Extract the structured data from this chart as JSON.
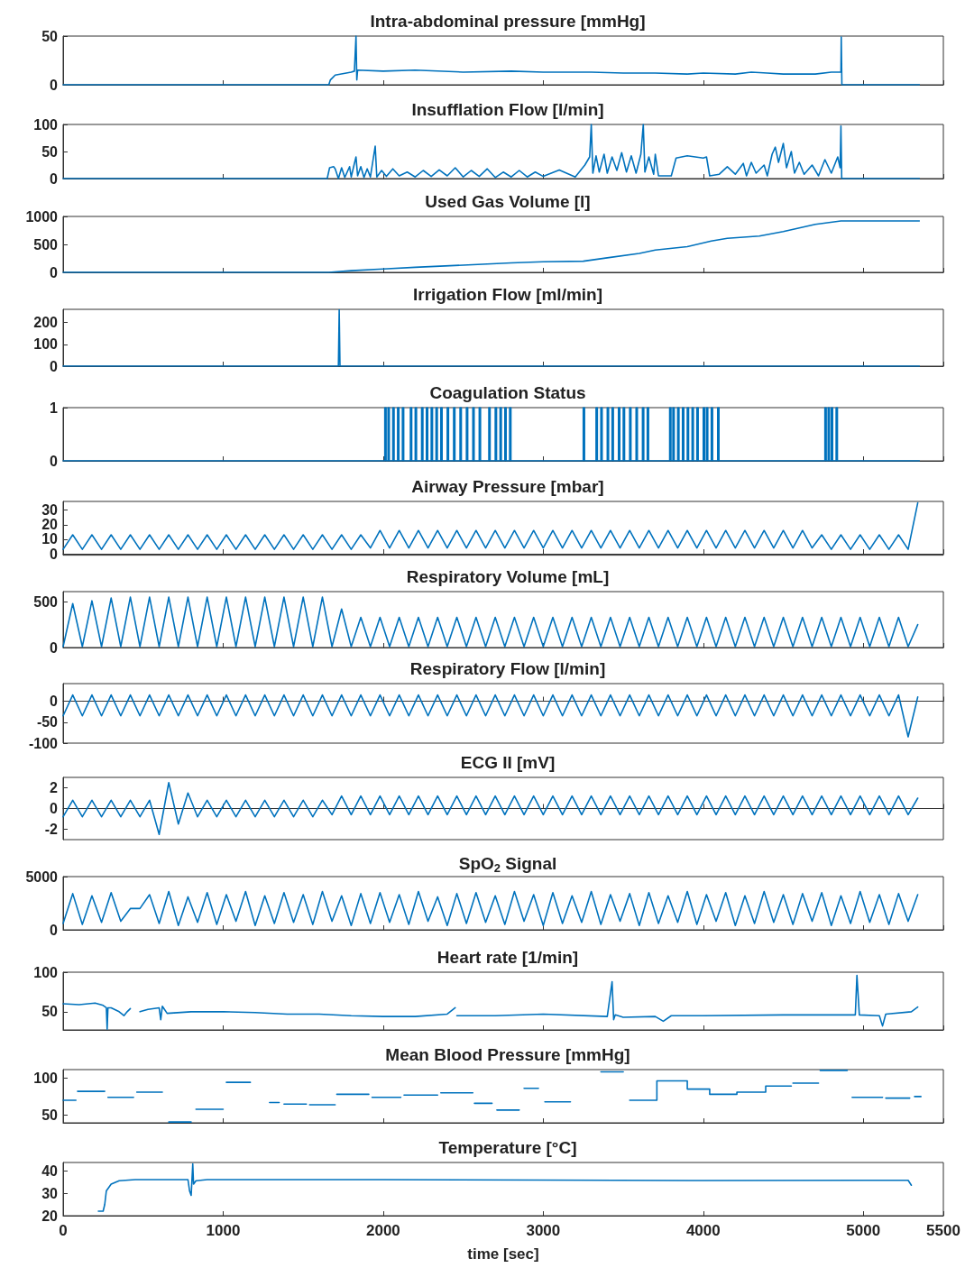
{
  "chart_data": [
    {
      "type": "line",
      "title": "Intra-abdominal pressure [mmHg]",
      "xlim": [
        0,
        5500
      ],
      "xticks": [
        0,
        1000,
        2000,
        3000,
        4000,
        5000,
        5500
      ],
      "ylim": [
        0,
        50
      ],
      "yticks": [
        0,
        50
      ],
      "tick_labels": "y",
      "series": [
        {
          "color": "#0072bd",
          "x": [
            0,
            1660,
            1670,
            1700,
            1800,
            1820,
            1830,
            1835,
            1840,
            2000,
            2200,
            2500,
            2800,
            3000,
            3300,
            3500,
            3700,
            3900,
            4000,
            4200,
            4300,
            4400,
            4500,
            4700,
            4800,
            4855,
            4860,
            4862,
            4866,
            5350
          ],
          "values": [
            0,
            0,
            5,
            10,
            13,
            14,
            50,
            5,
            15,
            14,
            15,
            13,
            14,
            13,
            13,
            12,
            12,
            11,
            12,
            11,
            13,
            12,
            11,
            11,
            13,
            13,
            13,
            49,
            0,
            0
          ]
        }
      ]
    },
    {
      "type": "line",
      "title": "Insufflation Flow [l/min]",
      "xlim": [
        0,
        5500
      ],
      "xticks": [
        0,
        1000,
        2000,
        3000,
        4000,
        5000,
        5500
      ],
      "ylim": [
        0,
        100
      ],
      "yticks": [
        0,
        50,
        100
      ],
      "tick_labels": "y",
      "series": [
        {
          "color": "#0072bd",
          "x": [
            0,
            1650,
            1665,
            1690,
            1700,
            1720,
            1740,
            1760,
            1790,
            1800,
            1820,
            1830,
            1840,
            1860,
            1880,
            1900,
            1920,
            1950,
            1960,
            1990,
            2020,
            2060,
            2100,
            2150,
            2200,
            2250,
            2300,
            2350,
            2400,
            2450,
            2500,
            2550,
            2600,
            2650,
            2700,
            2750,
            2800,
            2850,
            2900,
            2950,
            3000,
            3100,
            3200,
            3260,
            3290,
            3300,
            3310,
            3330,
            3350,
            3380,
            3400,
            3430,
            3460,
            3490,
            3520,
            3550,
            3580,
            3610,
            3625,
            3635,
            3660,
            3690,
            3700,
            3720,
            3750,
            3800,
            3830,
            3900,
            3950,
            4000,
            4020,
            4040,
            4100,
            4150,
            4200,
            4250,
            4270,
            4300,
            4330,
            4380,
            4400,
            4430,
            4450,
            4470,
            4500,
            4520,
            4550,
            4570,
            4600,
            4630,
            4680,
            4720,
            4760,
            4800,
            4840,
            4855,
            4860,
            4865,
            5350
          ],
          "values": [
            0,
            0,
            20,
            22,
            18,
            0,
            20,
            2,
            22,
            3,
            28,
            40,
            5,
            22,
            2,
            18,
            3,
            60,
            3,
            15,
            4,
            18,
            5,
            12,
            3,
            15,
            4,
            16,
            5,
            20,
            3,
            15,
            4,
            18,
            2,
            12,
            3,
            15,
            3,
            12,
            4,
            16,
            3,
            25,
            40,
            100,
            10,
            42,
            12,
            45,
            10,
            40,
            15,
            48,
            12,
            42,
            10,
            45,
            100,
            12,
            40,
            8,
            45,
            5,
            5,
            5,
            38,
            42,
            40,
            38,
            40,
            5,
            8,
            22,
            8,
            28,
            5,
            30,
            10,
            25,
            5,
            45,
            58,
            30,
            65,
            20,
            50,
            10,
            30,
            8,
            25,
            5,
            35,
            10,
            40,
            20,
            97,
            0,
            0
          ]
        }
      ]
    },
    {
      "type": "line",
      "title": "Used Gas Volume [l]",
      "xlim": [
        0,
        5500
      ],
      "xticks": [
        0,
        1000,
        2000,
        3000,
        4000,
        5000,
        5500
      ],
      "ylim": [
        0,
        1000
      ],
      "yticks": [
        0,
        500,
        1000
      ],
      "tick_labels": "y",
      "series": [
        {
          "color": "#0072bd",
          "x": [
            0,
            1660,
            1800,
            2000,
            2200,
            2500,
            2800,
            3000,
            3250,
            3400,
            3600,
            3700,
            3900,
            4050,
            4150,
            4350,
            4500,
            4700,
            4860,
            5350
          ],
          "values": [
            0,
            0,
            30,
            60,
            90,
            130,
            170,
            190,
            200,
            260,
            340,
            400,
            460,
            560,
            610,
            650,
            730,
            860,
            920,
            920
          ]
        }
      ]
    },
    {
      "type": "line",
      "title": "Irrigation Flow [ml/min]",
      "xlim": [
        0,
        5500
      ],
      "xticks": [
        0,
        1000,
        2000,
        3000,
        4000,
        5000,
        5500
      ],
      "ylim": [
        0,
        260
      ],
      "yticks": [
        0,
        100,
        200
      ],
      "tick_labels": "y",
      "series": [
        {
          "color": "#0072bd",
          "x": [
            0,
            1720,
            1725,
            1730,
            5350
          ],
          "values": [
            0,
            0,
            258,
            0,
            0
          ]
        }
      ]
    },
    {
      "type": "step",
      "title": "Coagulation Status",
      "xlim": [
        0,
        5500
      ],
      "xticks": [
        0,
        1000,
        2000,
        3000,
        4000,
        5000,
        5500
      ],
      "ylim": [
        0,
        1
      ],
      "yticks": [
        0,
        1
      ],
      "tick_labels": "y",
      "series": [
        {
          "color": "#0072bd",
          "x": [
            0,
            2010,
            2018,
            2030,
            2038,
            2060,
            2068,
            2090,
            2098,
            2120,
            2128,
            2170,
            2178,
            2200,
            2208,
            2240,
            2248,
            2270,
            2278,
            2300,
            2308,
            2330,
            2338,
            2360,
            2368,
            2400,
            2408,
            2440,
            2448,
            2480,
            2488,
            2520,
            2528,
            2560,
            2568,
            2600,
            2608,
            2660,
            2668,
            2700,
            2708,
            2730,
            2738,
            2760,
            2768,
            2790,
            2798,
            3250,
            3258,
            3330,
            3338,
            3360,
            3368,
            3400,
            3408,
            3430,
            3438,
            3470,
            3478,
            3500,
            3508,
            3540,
            3548,
            3580,
            3588,
            3620,
            3628,
            3650,
            3658,
            3790,
            3798,
            3810,
            3818,
            3840,
            3848,
            3870,
            3878,
            3900,
            3908,
            3930,
            3938,
            3960,
            3968,
            4000,
            4008,
            4020,
            4028,
            4050,
            4058,
            4090,
            4098,
            4760,
            4768,
            4780,
            4788,
            4800,
            4808,
            4830,
            4838,
            5350
          ],
          "values": [
            0,
            1,
            0,
            1,
            0,
            1,
            0,
            1,
            0,
            1,
            0,
            1,
            0,
            1,
            0,
            1,
            0,
            1,
            0,
            1,
            0,
            1,
            0,
            1,
            0,
            1,
            0,
            1,
            0,
            1,
            0,
            1,
            0,
            1,
            0,
            1,
            0,
            1,
            0,
            1,
            0,
            1,
            0,
            1,
            0,
            1,
            0,
            1,
            0,
            1,
            0,
            1,
            0,
            1,
            0,
            1,
            0,
            1,
            0,
            1,
            0,
            1,
            0,
            1,
            0,
            1,
            0,
            1,
            0,
            1,
            0,
            1,
            0,
            1,
            0,
            1,
            0,
            1,
            0,
            1,
            0,
            1,
            0,
            1,
            0,
            1,
            0,
            1,
            0,
            1,
            0,
            1,
            0,
            1,
            0,
            1,
            0,
            1,
            0,
            0
          ]
        }
      ]
    },
    {
      "type": "line",
      "title": "Airway Pressure [mbar]",
      "xlim": [
        0,
        5500
      ],
      "xticks": [
        0,
        1000,
        2000,
        3000,
        4000,
        5000,
        5500
      ],
      "ylim": [
        -1,
        36
      ],
      "yticks": [
        0,
        10,
        20,
        30
      ],
      "tick_labels": "y",
      "x": [
        0,
        60,
        120,
        180,
        240,
        300,
        360,
        420,
        480,
        540,
        600,
        660,
        720,
        780,
        840,
        900,
        960,
        1020,
        1080,
        1140,
        1200,
        1260,
        1320,
        1380,
        1440,
        1500,
        1560,
        1620,
        1680,
        1740,
        1800,
        1860,
        1920,
        1980,
        2040,
        2100,
        2160,
        2220,
        2280,
        2340,
        2400,
        2460,
        2520,
        2580,
        2640,
        2700,
        2760,
        2820,
        2880,
        2940,
        3000,
        3060,
        3120,
        3180,
        3240,
        3300,
        3360,
        3420,
        3480,
        3540,
        3600,
        3660,
        3720,
        3780,
        3840,
        3900,
        3960,
        4020,
        4080,
        4140,
        4200,
        4260,
        4320,
        4380,
        4440,
        4500,
        4560,
        4620,
        4680,
        4740,
        4800,
        4860,
        4920,
        4980,
        5040,
        5100,
        5160,
        5220,
        5280,
        5340
      ],
      "series": [
        {
          "color": "#0072bd",
          "values": [
            3,
            13,
            3,
            13,
            3,
            13,
            3,
            13,
            3,
            13,
            3,
            13,
            3,
            13,
            3,
            13,
            3,
            13,
            3,
            13,
            3,
            13,
            3,
            13,
            3,
            13,
            3,
            13,
            3,
            13,
            3,
            13,
            4,
            16,
            4,
            16,
            4,
            16,
            4,
            16,
            4,
            16,
            4,
            16,
            4,
            16,
            4,
            16,
            4,
            16,
            4,
            16,
            4,
            16,
            4,
            16,
            4,
            16,
            4,
            16,
            4,
            16,
            4,
            16,
            4,
            16,
            4,
            16,
            4,
            16,
            4,
            16,
            4,
            16,
            4,
            16,
            4,
            16,
            4,
            13,
            3,
            13,
            3,
            13,
            3,
            13,
            3,
            13,
            3,
            35
          ]
        }
      ]
    },
    {
      "type": "line",
      "title": "Respiratory Volume [mL]",
      "xlim": [
        0,
        5500
      ],
      "xticks": [
        0,
        1000,
        2000,
        3000,
        4000,
        5000,
        5500
      ],
      "ylim": [
        0,
        610
      ],
      "yticks": [
        0,
        500
      ],
      "tick_labels": "y",
      "x": [
        0,
        60,
        120,
        180,
        240,
        300,
        360,
        420,
        480,
        540,
        600,
        660,
        720,
        780,
        840,
        900,
        960,
        1020,
        1080,
        1140,
        1200,
        1260,
        1320,
        1380,
        1440,
        1500,
        1560,
        1620,
        1680,
        1740,
        1800,
        1860,
        1920,
        1980,
        2040,
        2100,
        2160,
        2220,
        2280,
        2340,
        2400,
        2460,
        2520,
        2580,
        2640,
        2700,
        2760,
        2820,
        2880,
        2940,
        3000,
        3060,
        3120,
        3180,
        3240,
        3300,
        3360,
        3420,
        3480,
        3540,
        3600,
        3660,
        3720,
        3780,
        3840,
        3900,
        3960,
        4020,
        4080,
        4140,
        4200,
        4260,
        4320,
        4380,
        4440,
        4500,
        4560,
        4620,
        4680,
        4740,
        4800,
        4860,
        4920,
        4980,
        5040,
        5100,
        5160,
        5220,
        5280,
        5340
      ],
      "series": [
        {
          "color": "#0072bd",
          "values": [
            10,
            480,
            10,
            510,
            10,
            540,
            10,
            550,
            10,
            550,
            10,
            550,
            10,
            550,
            10,
            550,
            10,
            550,
            10,
            550,
            10,
            550,
            10,
            550,
            10,
            550,
            10,
            550,
            10,
            420,
            10,
            330,
            10,
            330,
            10,
            330,
            10,
            330,
            10,
            330,
            10,
            330,
            10,
            330,
            10,
            330,
            10,
            330,
            10,
            330,
            10,
            330,
            10,
            330,
            10,
            330,
            10,
            330,
            10,
            330,
            10,
            330,
            10,
            330,
            10,
            330,
            10,
            330,
            10,
            330,
            10,
            330,
            10,
            330,
            10,
            330,
            10,
            330,
            10,
            330,
            10,
            330,
            10,
            330,
            10,
            330,
            10,
            330,
            10,
            250
          ]
        }
      ]
    },
    {
      "type": "line",
      "title": "Respiratory Flow [l/min]",
      "xlim": [
        0,
        5500
      ],
      "xticks": [
        0,
        1000,
        2000,
        3000,
        4000,
        5000,
        5500
      ],
      "ylim": [
        -100,
        42
      ],
      "yticks": [
        -100,
        -50,
        0
      ],
      "tick_labels": "y",
      "x": [
        0,
        60,
        120,
        180,
        240,
        300,
        360,
        420,
        480,
        540,
        600,
        660,
        720,
        780,
        840,
        900,
        960,
        1020,
        1080,
        1140,
        1200,
        1260,
        1320,
        1380,
        1440,
        1500,
        1560,
        1620,
        1680,
        1740,
        1800,
        1860,
        1920,
        1980,
        2040,
        2100,
        2160,
        2220,
        2280,
        2340,
        2400,
        2460,
        2520,
        2580,
        2640,
        2700,
        2760,
        2820,
        2880,
        2940,
        3000,
        3060,
        3120,
        3180,
        3240,
        3300,
        3360,
        3420,
        3480,
        3540,
        3600,
        3660,
        3720,
        3780,
        3840,
        3900,
        3960,
        4020,
        4080,
        4140,
        4200,
        4260,
        4320,
        4380,
        4440,
        4500,
        4560,
        4620,
        4680,
        4740,
        4800,
        4860,
        4920,
        4980,
        5040,
        5100,
        5160,
        5220,
        5280,
        5340
      ],
      "series": [
        {
          "color": "#0072bd",
          "values": [
            -35,
            15,
            -35,
            15,
            -35,
            15,
            -35,
            15,
            -35,
            15,
            -35,
            15,
            -35,
            15,
            -35,
            15,
            -35,
            15,
            -35,
            15,
            -35,
            15,
            -35,
            15,
            -35,
            15,
            -35,
            15,
            -35,
            15,
            -35,
            15,
            -35,
            15,
            -35,
            15,
            -35,
            15,
            -35,
            15,
            -35,
            15,
            -35,
            15,
            -35,
            15,
            -35,
            15,
            -35,
            15,
            -35,
            15,
            -35,
            15,
            -35,
            15,
            -35,
            15,
            -35,
            15,
            -35,
            15,
            -35,
            15,
            -35,
            15,
            -35,
            15,
            -35,
            15,
            -35,
            15,
            -35,
            15,
            -35,
            15,
            -35,
            15,
            -35,
            15,
            -35,
            15,
            -35,
            15,
            -35,
            15,
            -35,
            15,
            -85,
            10
          ]
        }
      ]
    },
    {
      "type": "line",
      "title": "ECG II [mV]",
      "xlim": [
        0,
        5500
      ],
      "xticks": [
        0,
        1000,
        2000,
        3000,
        4000,
        5000,
        5500
      ],
      "ylim": [
        -3,
        3
      ],
      "yticks": [
        -2,
        0,
        2
      ],
      "tick_labels": "y",
      "x": [
        0,
        60,
        120,
        180,
        240,
        300,
        360,
        420,
        480,
        540,
        600,
        660,
        720,
        780,
        840,
        900,
        960,
        1020,
        1080,
        1140,
        1200,
        1260,
        1320,
        1380,
        1440,
        1500,
        1560,
        1620,
        1680,
        1740,
        1800,
        1860,
        1920,
        1980,
        2040,
        2100,
        2160,
        2220,
        2280,
        2340,
        2400,
        2460,
        2520,
        2580,
        2640,
        2700,
        2760,
        2820,
        2880,
        2940,
        3000,
        3060,
        3120,
        3180,
        3240,
        3300,
        3360,
        3420,
        3480,
        3540,
        3600,
        3660,
        3720,
        3780,
        3840,
        3900,
        3960,
        4020,
        4080,
        4140,
        4200,
        4260,
        4320,
        4380,
        4440,
        4500,
        4560,
        4620,
        4680,
        4740,
        4800,
        4860,
        4920,
        4980,
        5040,
        5100,
        5160,
        5220,
        5280,
        5340
      ],
      "series": [
        {
          "color": "#0072bd",
          "values": [
            -0.8,
            0.8,
            -0.8,
            0.8,
            -0.8,
            0.8,
            -0.8,
            0.8,
            -0.8,
            0.8,
            -2.5,
            2.5,
            -1.5,
            1.5,
            -0.8,
            0.8,
            -0.8,
            0.8,
            -0.8,
            0.8,
            -0.8,
            0.8,
            -0.8,
            0.8,
            -0.8,
            0.8,
            -0.8,
            0.8,
            -0.6,
            1.2,
            -0.6,
            1.2,
            -0.6,
            1.2,
            -0.6,
            1.2,
            -0.6,
            1.2,
            -0.6,
            1.2,
            -0.6,
            1.2,
            -0.6,
            1.2,
            -0.6,
            1.2,
            -0.6,
            1.2,
            -0.6,
            1.2,
            -0.6,
            1.2,
            -0.6,
            1.2,
            -0.6,
            1.2,
            -0.6,
            1.2,
            -0.6,
            1.2,
            -0.6,
            1.2,
            -0.6,
            1.2,
            -0.6,
            1.2,
            -0.6,
            1.2,
            -0.6,
            1.2,
            -0.6,
            1.2,
            -0.6,
            1.2,
            -0.6,
            1.2,
            -0.6,
            1.2,
            -0.6,
            1.2,
            -0.6,
            1.2,
            -0.6,
            1.2,
            -0.6,
            1.2,
            -0.6,
            1.2,
            -0.6,
            1
          ]
        }
      ]
    },
    {
      "type": "line",
      "title": "SpO$_{2}$ Signal",
      "xlim": [
        0,
        5500
      ],
      "xticks": [
        0,
        1000,
        2000,
        3000,
        4000,
        5000,
        5500
      ],
      "ylim": [
        0,
        5000
      ],
      "yticks": [
        0,
        5000
      ],
      "tick_labels": "y",
      "x": [
        0,
        60,
        120,
        180,
        240,
        300,
        360,
        420,
        480,
        540,
        600,
        660,
        720,
        780,
        840,
        900,
        960,
        1020,
        1080,
        1140,
        1200,
        1260,
        1320,
        1380,
        1440,
        1500,
        1560,
        1620,
        1680,
        1740,
        1800,
        1860,
        1920,
        1980,
        2040,
        2100,
        2160,
        2220,
        2280,
        2340,
        2400,
        2460,
        2520,
        2580,
        2640,
        2700,
        2760,
        2820,
        2880,
        2940,
        3000,
        3060,
        3120,
        3180,
        3240,
        3300,
        3360,
        3420,
        3480,
        3540,
        3600,
        3660,
        3720,
        3780,
        3840,
        3900,
        3960,
        4020,
        4080,
        4140,
        4200,
        4260,
        4320,
        4380,
        4440,
        4500,
        4560,
        4620,
        4680,
        4740,
        4800,
        4860,
        4920,
        4980,
        5040,
        5100,
        5160,
        5220,
        5280,
        5340
      ],
      "series": [
        {
          "color": "#0072bd",
          "values": [
            600,
            3400,
            500,
            3200,
            700,
            3500,
            800,
            2000,
            2000,
            3300,
            600,
            3600,
            400,
            3100,
            700,
            3500,
            500,
            3300,
            800,
            3600,
            400,
            3200,
            600,
            3500,
            700,
            3300,
            500,
            3600,
            800,
            3200,
            400,
            3400,
            600,
            3500,
            700,
            3300,
            500,
            3600,
            800,
            3100,
            400,
            3400,
            600,
            3500,
            700,
            3200,
            500,
            3600,
            800,
            3300,
            400,
            3500,
            600,
            3200,
            700,
            3600,
            500,
            3300,
            800,
            3400,
            400,
            3500,
            600,
            3200,
            700,
            3600,
            500,
            3300,
            800,
            3500,
            400,
            3200,
            600,
            3600,
            700,
            3300,
            500,
            3400,
            800,
            3500,
            400,
            3200,
            600,
            3600,
            700,
            3300,
            500,
            3400,
            800,
            3300
          ]
        }
      ]
    },
    {
      "type": "line",
      "title": "Heart rate [1/min]",
      "xlim": [
        0,
        5500
      ],
      "xticks": [
        0,
        1000,
        2000,
        3000,
        4000,
        5000,
        5500
      ],
      "ylim": [
        27,
        100
      ],
      "yticks": [
        50,
        100
      ],
      "tick_labels": "y",
      "series": [
        {
          "color": "#0072bd",
          "x": [
            0,
            100,
            200,
            250,
            270,
            275,
            280,
            300,
            350,
            380,
            400,
            420,
            450,
            480,
            530,
            600,
            610,
            620,
            650,
            800,
            1000,
            1200,
            1400,
            1600,
            1800,
            2000,
            2200,
            2400,
            2450,
            2455,
            2460,
            2700,
            3000,
            3400,
            3430,
            3440,
            3450,
            3500,
            3700,
            3750,
            3800,
            4000,
            4500,
            4950,
            4960,
            4975,
            5100,
            5120,
            5140,
            5300,
            5340
          ],
          "values": [
            60,
            59,
            61,
            58,
            55,
            28,
            55,
            55,
            50,
            45,
            50,
            54,
            null,
            50,
            53,
            55,
            40,
            57,
            48,
            50,
            50,
            49,
            47,
            47,
            45,
            44,
            44,
            47,
            55,
            null,
            45,
            45,
            47,
            44,
            88,
            40,
            46,
            43,
            44,
            38,
            45,
            45,
            46,
            46,
            96,
            46,
            45,
            32,
            47,
            50,
            56
          ]
        }
      ]
    },
    {
      "type": "line",
      "title": "Mean Blood Pressure [mmHg]",
      "xlim": [
        0,
        5500
      ],
      "xticks": [
        0,
        1000,
        2000,
        3000,
        4000,
        5000,
        5500
      ],
      "ylim": [
        40,
        111
      ],
      "yticks": [
        50,
        100
      ],
      "tick_labels": "y",
      "series": [
        {
          "color": "#0072bd",
          "x": [
            0,
            80,
            85,
            90,
            260,
            270,
            280,
            440,
            450,
            460,
            620,
            640,
            660,
            800,
            815,
            830,
            1000,
            1010,
            1020,
            1170,
            1230,
            1290,
            1350,
            1365,
            1380,
            1520,
            1530,
            1540,
            1700,
            1705,
            1710,
            1910,
            1920,
            1930,
            2110,
            2120,
            2130,
            2340,
            2350,
            2360,
            2560,
            2565,
            2570,
            2680,
            2695,
            2710,
            2850,
            2865,
            2880,
            2970,
            2990,
            3010,
            3170,
            3265,
            3360,
            3500,
            3520,
            3540,
            3710,
            3710,
            3900,
            3900,
            4040,
            4040,
            4210,
            4210,
            4390,
            4390,
            4550,
            4555,
            4560,
            4720,
            4725,
            4730,
            4900,
            4915,
            4930,
            5120,
            5130,
            5140,
            5290,
            5305,
            5320,
            5360
          ],
          "values": [
            70,
            70,
            null,
            82,
            82,
            null,
            74,
            74,
            null,
            81,
            81,
            null,
            41,
            41,
            null,
            58,
            58,
            null,
            94,
            94,
            null,
            67,
            67,
            null,
            65,
            65,
            null,
            64,
            64,
            null,
            78,
            78,
            null,
            74,
            74,
            null,
            77,
            77,
            null,
            80,
            80,
            null,
            66,
            66,
            null,
            57,
            57,
            null,
            86,
            86,
            null,
            68,
            68,
            null,
            108,
            108,
            null,
            70,
            70,
            96,
            96,
            85,
            85,
            78,
            78,
            81,
            81,
            89,
            89,
            null,
            93,
            93,
            null,
            110,
            110,
            null,
            74,
            74,
            null,
            73,
            73,
            null,
            75,
            75
          ]
        }
      ]
    },
    {
      "type": "line",
      "title": "Temperature [°C]",
      "xlabel": "time [sec]",
      "xlim": [
        0,
        5500
      ],
      "xticks": [
        0,
        1000,
        2000,
        3000,
        4000,
        5000,
        5500
      ],
      "ylim": [
        20,
        43.6
      ],
      "yticks": [
        20,
        30,
        40
      ],
      "series": [
        {
          "color": "#0072bd",
          "x": [
            220,
            250,
            260,
            270,
            300,
            350,
            450,
            780,
            790,
            800,
            805,
            810,
            815,
            830,
            900,
            2000,
            3000,
            4000,
            5000,
            5280,
            5300
          ],
          "values": [
            22,
            22,
            25,
            31,
            34,
            35.5,
            36,
            36,
            31,
            29,
            36,
            43,
            34,
            35.5,
            36,
            36,
            35.8,
            35.6,
            35.7,
            35.7,
            33.5
          ]
        }
      ]
    }
  ]
}
